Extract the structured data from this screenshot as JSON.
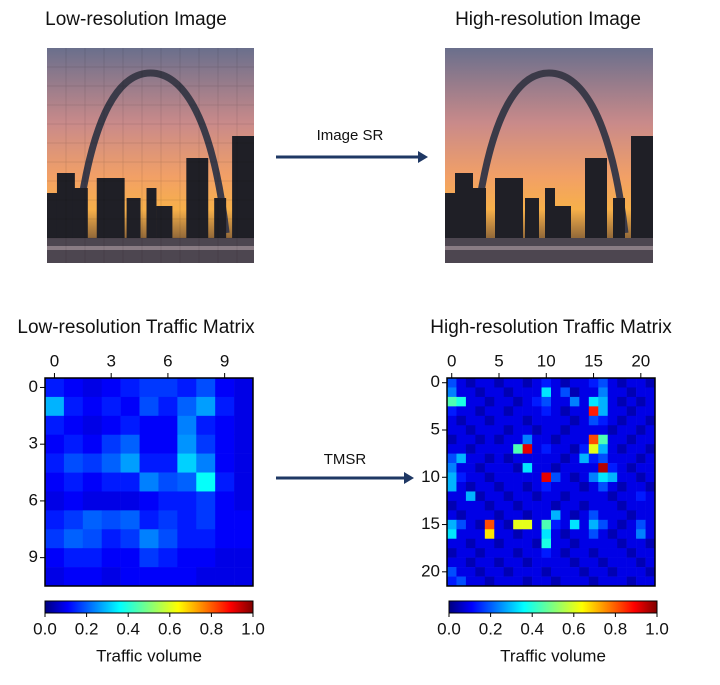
{
  "images": [
    {
      "title": "Low-resolution Image"
    },
    {
      "title": "High-resolution Image"
    }
  ],
  "arrows": [
    {
      "label": "Image SR"
    },
    {
      "label": "TMSR"
    }
  ],
  "matrices": [
    {
      "title": "Low-resolution Traffic Matrix",
      "size": 11,
      "xticks": [
        0,
        3,
        6,
        9
      ],
      "yticks": [
        0,
        3,
        6,
        9
      ],
      "clim": [
        0,
        1
      ],
      "colorbar": {
        "label": "Traffic volume",
        "ticks": [
          {
            "value": 0,
            "label": "0.0"
          },
          {
            "value": 0.2,
            "label": "0.2"
          },
          {
            "value": 0.4,
            "label": "0.4"
          },
          {
            "value": 0.6,
            "label": "0.6"
          },
          {
            "value": 0.8,
            "label": "0.8"
          },
          {
            "value": 1,
            "label": "1.0"
          }
        ]
      },
      "values": [
        [
          0.15,
          0.12,
          0.1,
          0.12,
          0.15,
          0.18,
          0.18,
          0.15,
          0.2,
          0.12,
          0.1
        ],
        [
          0.3,
          0.15,
          0.12,
          0.15,
          0.12,
          0.2,
          0.15,
          0.22,
          0.28,
          0.15,
          0.1
        ],
        [
          0.15,
          0.12,
          0.1,
          0.12,
          0.15,
          0.12,
          0.12,
          0.25,
          0.15,
          0.12,
          0.1
        ],
        [
          0.12,
          0.15,
          0.12,
          0.18,
          0.22,
          0.12,
          0.12,
          0.27,
          0.18,
          0.12,
          0.1
        ],
        [
          0.15,
          0.2,
          0.18,
          0.22,
          0.28,
          0.15,
          0.15,
          0.33,
          0.25,
          0.12,
          0.1
        ],
        [
          0.12,
          0.15,
          0.12,
          0.15,
          0.15,
          0.25,
          0.2,
          0.22,
          0.38,
          0.15,
          0.1
        ],
        [
          0.1,
          0.12,
          0.1,
          0.1,
          0.1,
          0.12,
          0.15,
          0.15,
          0.18,
          0.12,
          0.1
        ],
        [
          0.15,
          0.18,
          0.22,
          0.2,
          0.22,
          0.15,
          0.18,
          0.15,
          0.18,
          0.12,
          0.12
        ],
        [
          0.18,
          0.22,
          0.2,
          0.15,
          0.18,
          0.25,
          0.2,
          0.15,
          0.15,
          0.12,
          0.12
        ],
        [
          0.12,
          0.15,
          0.15,
          0.12,
          0.12,
          0.18,
          0.15,
          0.12,
          0.12,
          0.1,
          0.1
        ],
        [
          0.1,
          0.12,
          0.12,
          0.1,
          0.12,
          0.12,
          0.12,
          0.12,
          0.1,
          0.1,
          0.1
        ]
      ]
    },
    {
      "title": "High-resolution Traffic Matrix",
      "size": 22,
      "xticks": [
        0,
        5,
        10,
        15,
        20
      ],
      "yticks": [
        0,
        5,
        10,
        15,
        20
      ],
      "clim": [
        0,
        1
      ],
      "colorbar": {
        "label": "Traffic volume",
        "ticks": [
          {
            "value": 0,
            "label": "0.0"
          },
          {
            "value": 0.2,
            "label": "0.2"
          },
          {
            "value": 0.4,
            "label": "0.4"
          },
          {
            "value": 0.6,
            "label": "0.6"
          },
          {
            "value": 0.8,
            "label": "0.8"
          },
          {
            "value": 1,
            "label": "1.0"
          }
        ]
      },
      "values": [
        [
          0.2,
          0.1,
          0.05,
          0.1,
          0.1,
          0.05,
          0.1,
          0.1,
          0.05,
          0.1,
          0.15,
          0.1,
          0.05,
          0.1,
          0.1,
          0.15,
          0.2,
          0.1,
          0.05,
          0.1,
          0.1,
          0.05
        ],
        [
          0.25,
          0.1,
          0.1,
          0.05,
          0.1,
          0.1,
          0.05,
          0.1,
          0.1,
          0.1,
          0.35,
          0.1,
          0.2,
          0.05,
          0.1,
          0.1,
          0.25,
          0.1,
          0.1,
          0.05,
          0.1,
          0.1
        ],
        [
          0.45,
          0.4,
          0.1,
          0.1,
          0.05,
          0.1,
          0.1,
          0.05,
          0.1,
          0.15,
          0.2,
          0.1,
          0.1,
          0.25,
          0.1,
          0.35,
          0.3,
          0.1,
          0.05,
          0.1,
          0.05,
          0.1
        ],
        [
          0.15,
          0.1,
          0.1,
          0.05,
          0.1,
          0.1,
          0.05,
          0.1,
          0.1,
          0.1,
          0.15,
          0.1,
          0.05,
          0.1,
          0.1,
          0.85,
          0.3,
          0.1,
          0.1,
          0.05,
          0.1,
          0.1
        ],
        [
          0.1,
          0.05,
          0.1,
          0.1,
          0.05,
          0.1,
          0.1,
          0.1,
          0.05,
          0.1,
          0.1,
          0.1,
          0.1,
          0.05,
          0.1,
          0.2,
          0.15,
          0.1,
          0.05,
          0.1,
          0.1,
          0.05
        ],
        [
          0.1,
          0.1,
          0.05,
          0.1,
          0.1,
          0.1,
          0.05,
          0.1,
          0.1,
          0.05,
          0.1,
          0.1,
          0.05,
          0.1,
          0.1,
          0.1,
          0.1,
          0.05,
          0.1,
          0.1,
          0.05,
          0.1
        ],
        [
          0.05,
          0.1,
          0.1,
          0.05,
          0.1,
          0.05,
          0.1,
          0.1,
          0.25,
          0.1,
          0.1,
          0.05,
          0.1,
          0.1,
          0.1,
          0.8,
          0.45,
          0.1,
          0.1,
          0.05,
          0.1,
          0.1
        ],
        [
          0.1,
          0.1,
          0.05,
          0.1,
          0.1,
          0.1,
          0.1,
          0.45,
          0.9,
          0.1,
          0.15,
          0.1,
          0.1,
          0.05,
          0.15,
          0.6,
          0.3,
          0.1,
          0.05,
          0.1,
          0.1,
          0.05
        ],
        [
          0.2,
          0.3,
          0.1,
          0.1,
          0.05,
          0.1,
          0.05,
          0.1,
          0.1,
          0.1,
          0.1,
          0.1,
          0.05,
          0.1,
          0.3,
          0.15,
          0.2,
          0.1,
          0.1,
          0.1,
          0.05,
          0.1
        ],
        [
          0.25,
          0.1,
          0.1,
          0.05,
          0.1,
          0.1,
          0.1,
          0.05,
          0.35,
          0.1,
          0.1,
          0.05,
          0.1,
          0.1,
          0.1,
          0.1,
          0.95,
          0.15,
          0.1,
          0.05,
          0.1,
          0.1
        ],
        [
          0.3,
          0.15,
          0.1,
          0.1,
          0.05,
          0.1,
          0.1,
          0.1,
          0.1,
          0.1,
          0.9,
          0.2,
          0.1,
          0.05,
          0.1,
          0.25,
          0.35,
          0.3,
          0.1,
          0.1,
          0.05,
          0.1
        ],
        [
          0.3,
          0.1,
          0.05,
          0.1,
          0.1,
          0.05,
          0.1,
          0.1,
          0.05,
          0.1,
          0.15,
          0.1,
          0.1,
          0.1,
          0.05,
          0.1,
          0.2,
          0.1,
          0.05,
          0.1,
          0.1,
          0.05
        ],
        [
          0.1,
          0.1,
          0.3,
          0.05,
          0.1,
          0.1,
          0.05,
          0.1,
          0.1,
          0.05,
          0.1,
          0.1,
          0.05,
          0.1,
          0.1,
          0.1,
          0.1,
          0.05,
          0.1,
          0.1,
          0.15,
          0.1
        ],
        [
          0.05,
          0.1,
          0.1,
          0.1,
          0.05,
          0.1,
          0.1,
          0.05,
          0.1,
          0.1,
          0.1,
          0.05,
          0.1,
          0.1,
          0.05,
          0.1,
          0.1,
          0.1,
          0.05,
          0.1,
          0.1,
          0.1
        ],
        [
          0.1,
          0.05,
          0.1,
          0.1,
          0.1,
          0.05,
          0.1,
          0.1,
          0.05,
          0.1,
          0.1,
          0.3,
          0.1,
          0.05,
          0.1,
          0.2,
          0.1,
          0.1,
          0.1,
          0.05,
          0.1,
          0.1
        ],
        [
          0.3,
          0.2,
          0.1,
          0.05,
          0.8,
          0.1,
          0.05,
          0.6,
          0.6,
          0.1,
          0.45,
          0.15,
          0.1,
          0.35,
          0.1,
          0.3,
          0.2,
          0.1,
          0.05,
          0.1,
          0.2,
          0.1
        ],
        [
          0.35,
          0.1,
          0.1,
          0.1,
          0.65,
          0.1,
          0.1,
          0.05,
          0.1,
          0.1,
          0.35,
          0.1,
          0.05,
          0.1,
          0.1,
          0.2,
          0.1,
          0.05,
          0.1,
          0.1,
          0.25,
          0.1
        ],
        [
          0.1,
          0.1,
          0.05,
          0.1,
          0.1,
          0.05,
          0.1,
          0.1,
          0.1,
          0.05,
          0.4,
          0.1,
          0.1,
          0.05,
          0.1,
          0.1,
          0.1,
          0.1,
          0.05,
          0.1,
          0.1,
          0.05
        ],
        [
          0.05,
          0.1,
          0.1,
          0.05,
          0.1,
          0.1,
          0.1,
          0.05,
          0.1,
          0.1,
          0.15,
          0.1,
          0.05,
          0.1,
          0.1,
          0.05,
          0.1,
          0.1,
          0.1,
          0.05,
          0.1,
          0.1
        ],
        [
          0.1,
          0.1,
          0.05,
          0.1,
          0.1,
          0.05,
          0.1,
          0.1,
          0.05,
          0.1,
          0.1,
          0.1,
          0.1,
          0.05,
          0.1,
          0.1,
          0.05,
          0.1,
          0.1,
          0.1,
          0.05,
          0.1
        ],
        [
          0.2,
          0.1,
          0.1,
          0.05,
          0.1,
          0.1,
          0.05,
          0.1,
          0.1,
          0.1,
          0.05,
          0.1,
          0.1,
          0.1,
          0.05,
          0.1,
          0.1,
          0.05,
          0.1,
          0.1,
          0.1,
          0.05
        ],
        [
          0.15,
          0.2,
          0.1,
          0.1,
          0.05,
          0.1,
          0.1,
          0.1,
          0.05,
          0.1,
          0.1,
          0.05,
          0.1,
          0.1,
          0.1,
          0.05,
          0.1,
          0.1,
          0.1,
          0.05,
          0.1,
          0.1
        ]
      ]
    }
  ]
}
